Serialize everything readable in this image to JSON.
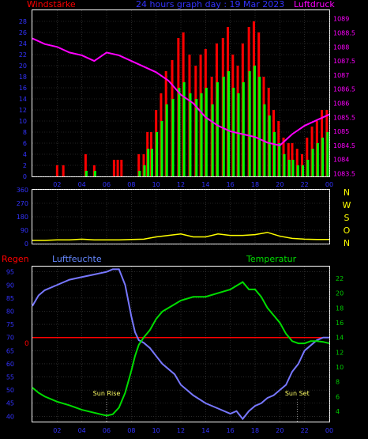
{
  "header": {
    "left_label": "Windstärke",
    "center_label": "24 hours graph day : 19 Mar 2023",
    "right_label": "Luftdruck"
  },
  "colors": {
    "wind_gust": "#ff0000",
    "wind_avg": "#00ff00",
    "pressure": "#ff00ff",
    "direction": "#ffff00",
    "humidity": "#7777ff",
    "temperature": "#00dd00",
    "rain": "#ff0000",
    "axis_left": "#2222ff",
    "axis_right_top": "#ff00ff",
    "axis_right_bottom": "#00cc00",
    "frame": "#ffffff"
  },
  "x_tick_labels": [
    "02",
    "04",
    "06",
    "08",
    "10",
    "12",
    "14",
    "16",
    "18",
    "20",
    "22",
    "00"
  ],
  "chart_data": [
    {
      "type": "bar",
      "name": "wind",
      "ylabel": "Windstärke",
      "y2label": "Luftdruck",
      "ylim": [
        0,
        30
      ],
      "y2lim": [
        1083.4,
        1089.3
      ],
      "y_tick_labels": [
        "0",
        "2",
        "4",
        "6",
        "8",
        "10",
        "12",
        "14",
        "16",
        "18",
        "20",
        "22",
        "24",
        "26",
        "28"
      ],
      "y2_tick_labels": [
        "1083.5",
        "1084",
        "1084.5",
        "1085",
        "1085.5",
        "1086",
        "1086.5",
        "1087",
        "1087.5",
        "1088",
        "1088.5",
        "1089"
      ],
      "x_hours": [
        2.0,
        2.5,
        4.3,
        5.0,
        6.6,
        6.9,
        7.2,
        8.6,
        9.0,
        9.3,
        9.6,
        10.0,
        10.4,
        10.8,
        11.3,
        11.8,
        12.2,
        12.7,
        13.2,
        13.6,
        14.0,
        14.5,
        14.9,
        15.4,
        15.8,
        16.2,
        16.6,
        17.0,
        17.5,
        17.9,
        18.3,
        18.7,
        19.1,
        19.5,
        19.9,
        20.3,
        20.7,
        21.0,
        21.4,
        21.8,
        22.2,
        22.6,
        23.0,
        23.4,
        23.8
      ],
      "gust": [
        2,
        2,
        4,
        2,
        3,
        3,
        3,
        4,
        4,
        8,
        8,
        12,
        15,
        19,
        21,
        25,
        26,
        22,
        20,
        22,
        23,
        18,
        24,
        25,
        27,
        22,
        20,
        24,
        27,
        28,
        26,
        18,
        16,
        12,
        10,
        7,
        6,
        6,
        5,
        4,
        7,
        9,
        10,
        12,
        12
      ],
      "avg": [
        0,
        0,
        1,
        1,
        0,
        0,
        0,
        1,
        2,
        5,
        5,
        8,
        10,
        13,
        14,
        16,
        17,
        15,
        14,
        15,
        16,
        13,
        17,
        18,
        19,
        16,
        15,
        17,
        19,
        20,
        18,
        13,
        11,
        8,
        6,
        4,
        3,
        3,
        2,
        2,
        3,
        5,
        6,
        7,
        8
      ],
      "pressure_x": [
        0,
        1,
        2,
        3,
        4,
        5,
        6,
        7,
        8,
        9,
        10,
        11,
        12,
        13,
        14,
        15,
        16,
        17,
        18,
        19,
        20,
        21,
        22,
        23,
        24
      ],
      "pressure": [
        1088.3,
        1088.1,
        1088.0,
        1087.8,
        1087.7,
        1087.5,
        1087.8,
        1087.7,
        1087.5,
        1087.3,
        1087.1,
        1086.8,
        1086.3,
        1086.0,
        1085.5,
        1085.2,
        1085.0,
        1084.9,
        1084.8,
        1084.6,
        1084.5,
        1084.9,
        1085.2,
        1085.4,
        1085.6
      ]
    },
    {
      "type": "line",
      "name": "direction",
      "ylabel": "",
      "ylim": [
        0,
        360
      ],
      "y_tick_labels": [
        "0",
        "90",
        "180",
        "270",
        "360"
      ],
      "side_labels": [
        "N",
        "W",
        "S",
        "O",
        "N"
      ],
      "x": [
        0,
        1,
        2,
        3,
        4,
        5,
        6,
        7,
        8,
        9,
        10,
        11,
        12,
        13,
        14,
        15,
        16,
        17,
        18,
        19,
        20,
        21,
        22,
        23,
        24
      ],
      "values": [
        22,
        22,
        25,
        25,
        30,
        25,
        25,
        25,
        28,
        30,
        45,
        55,
        65,
        45,
        45,
        65,
        55,
        55,
        60,
        75,
        50,
        35,
        30,
        28,
        28
      ]
    },
    {
      "type": "line",
      "name": "climate",
      "y_left_label": "Regen",
      "y_mid_label": "Luftfeuchte",
      "y_right_label": "Temperatur",
      "ylim": [
        38,
        97
      ],
      "y2lim": [
        2.6,
        23.6
      ],
      "y_tick_labels": [
        "40",
        "45",
        "50",
        "55",
        "60",
        "65",
        "70",
        "75",
        "80",
        "85",
        "90",
        "95"
      ],
      "y2_tick_labels": [
        "4",
        "6",
        "8",
        "10",
        "12",
        "14",
        "16",
        "18",
        "20",
        "22"
      ],
      "rain_line_value": 70,
      "rain_zero_label": "0",
      "x": [
        0,
        0.5,
        1,
        2,
        3,
        4,
        5,
        6,
        6.5,
        7,
        7.5,
        8,
        8.3,
        8.6,
        9,
        9.5,
        10,
        10.5,
        11,
        11.5,
        12,
        13,
        14,
        15,
        16,
        16.5,
        17,
        17.5,
        18,
        18.5,
        19,
        19.5,
        20,
        20.5,
        21,
        21.5,
        22,
        22.5,
        23,
        23.5,
        24
      ],
      "humidity": [
        82,
        86,
        88,
        90,
        92,
        93,
        94,
        95,
        96,
        96,
        90,
        78,
        72,
        69,
        68,
        66,
        63,
        60,
        58,
        56,
        52,
        48,
        45,
        43,
        41,
        42,
        39,
        42,
        44,
        45,
        47,
        48,
        50,
        52,
        57,
        60,
        65,
        67,
        69,
        70,
        70
      ],
      "temperature": [
        7.2,
        6.5,
        6.0,
        5.3,
        4.8,
        4.2,
        3.8,
        3.4,
        3.6,
        4.5,
        6.5,
        9.5,
        11.5,
        13,
        14,
        15,
        16.5,
        17.5,
        18,
        18.5,
        19,
        19.5,
        19.5,
        20,
        20.5,
        21,
        21.5,
        20.5,
        20.5,
        19.5,
        18,
        17,
        16,
        14.5,
        13.5,
        13.2,
        13.2,
        13.5,
        13.5,
        13.4,
        13.2
      ],
      "annotations": [
        {
          "label": "Sun Rise",
          "x": 6.0
        },
        {
          "label": "Sun Set",
          "x": 21.4
        }
      ]
    }
  ]
}
